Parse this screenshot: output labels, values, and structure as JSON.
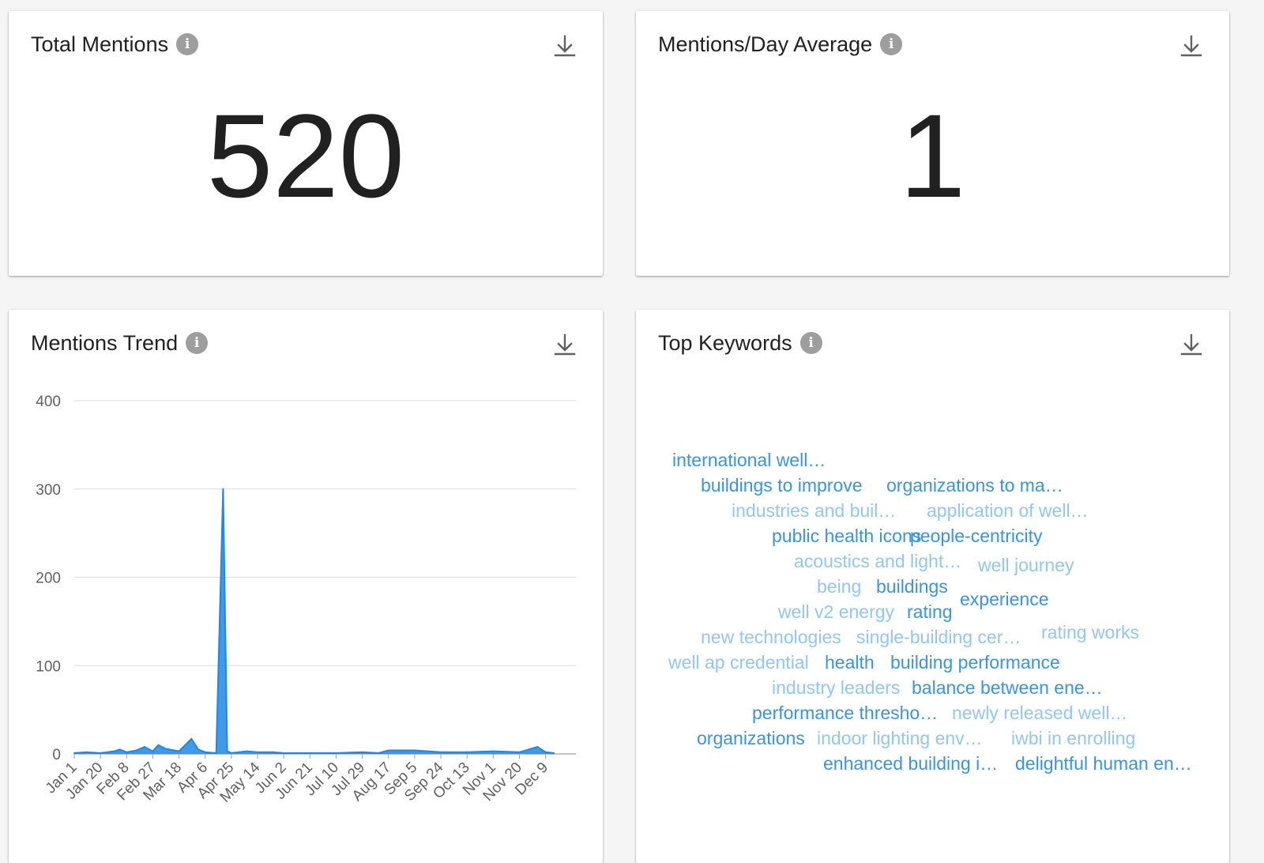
{
  "cards": {
    "total_mentions": {
      "title": "Total Mentions",
      "value": "520"
    },
    "mentions_per_day": {
      "title": "Mentions/Day Average",
      "value": "1"
    },
    "mentions_trend": {
      "title": "Mentions Trend"
    },
    "top_keywords": {
      "title": "Top Keywords"
    }
  },
  "icons": {
    "info": "info-icon",
    "download": "download-icon"
  },
  "colors": {
    "accent": "#1e88e5",
    "keyword_dark": "#3a95df",
    "keyword_light": "#92c8ef",
    "text": "#212121",
    "grey_icon": "#9e9e9e"
  },
  "chart_data": {
    "type": "area",
    "title": "Mentions Trend",
    "xlabel": "",
    "ylabel": "",
    "ylim": [
      0,
      400
    ],
    "y_ticks": [
      0,
      100,
      200,
      300,
      400
    ],
    "grid": true,
    "x_tick_labels": [
      "Jan 1",
      "Jan 20",
      "Feb 8",
      "Feb 27",
      "Mar 18",
      "Apr 6",
      "Apr 25",
      "May 14",
      "Jun 2",
      "Jun 21",
      "Jul 10",
      "Jul 29",
      "Aug 17",
      "Sep 5",
      "Sep 24",
      "Oct 13",
      "Nov 1",
      "Nov 20",
      "Dec 9"
    ],
    "series": [
      {
        "color": "#1e88e5",
        "points": [
          {
            "x": "Jan 1",
            "y": 1
          },
          {
            "x": "Jan 10",
            "y": 2
          },
          {
            "x": "Jan 20",
            "y": 1
          },
          {
            "x": "Jan 30",
            "y": 3
          },
          {
            "x": "Feb 3",
            "y": 5
          },
          {
            "x": "Feb 8",
            "y": 2
          },
          {
            "x": "Feb 15",
            "y": 4
          },
          {
            "x": "Feb 21",
            "y": 8
          },
          {
            "x": "Feb 27",
            "y": 3
          },
          {
            "x": "Mar 3",
            "y": 10
          },
          {
            "x": "Mar 8",
            "y": 6
          },
          {
            "x": "Mar 18",
            "y": 3
          },
          {
            "x": "Mar 27",
            "y": 17
          },
          {
            "x": "Apr 1",
            "y": 5
          },
          {
            "x": "Apr 6",
            "y": 2
          },
          {
            "x": "Apr 14",
            "y": 1
          },
          {
            "x": "Apr 19",
            "y": 300
          },
          {
            "x": "Apr 22",
            "y": 3
          },
          {
            "x": "Apr 25",
            "y": 1
          },
          {
            "x": "May 6",
            "y": 3
          },
          {
            "x": "May 14",
            "y": 2
          },
          {
            "x": "May 25",
            "y": 2
          },
          {
            "x": "Jun 2",
            "y": 1
          },
          {
            "x": "Jun 21",
            "y": 1
          },
          {
            "x": "Jul 10",
            "y": 1
          },
          {
            "x": "Jul 29",
            "y": 2
          },
          {
            "x": "Aug 10",
            "y": 1
          },
          {
            "x": "Aug 17",
            "y": 4
          },
          {
            "x": "Sep 5",
            "y": 4
          },
          {
            "x": "Sep 24",
            "y": 2
          },
          {
            "x": "Oct 13",
            "y": 2
          },
          {
            "x": "Nov 1",
            "y": 3
          },
          {
            "x": "Nov 20",
            "y": 2
          },
          {
            "x": "Dec 3",
            "y": 8
          },
          {
            "x": "Dec 9",
            "y": 2
          },
          {
            "x": "Dec 15",
            "y": 1
          }
        ]
      }
    ]
  },
  "keywords": [
    {
      "text": "international well…",
      "tone": "dark"
    },
    {
      "text": "buildings to improve",
      "tone": "dark"
    },
    {
      "text": "organizations to ma…",
      "tone": "dark"
    },
    {
      "text": "industries and buil…",
      "tone": "light"
    },
    {
      "text": "application of well…",
      "tone": "light"
    },
    {
      "text": "public health icons",
      "tone": "dark"
    },
    {
      "text": "people-centricity",
      "tone": "dark"
    },
    {
      "text": "acoustics and light…",
      "tone": "light"
    },
    {
      "text": "well journey",
      "tone": "light"
    },
    {
      "text": "being",
      "tone": "light"
    },
    {
      "text": "buildings",
      "tone": "dark"
    },
    {
      "text": "experience",
      "tone": "dark"
    },
    {
      "text": "well v2 energy",
      "tone": "light"
    },
    {
      "text": "rating",
      "tone": "dark"
    },
    {
      "text": "new technologies",
      "tone": "light"
    },
    {
      "text": "single-building cer…",
      "tone": "light"
    },
    {
      "text": "rating works",
      "tone": "light"
    },
    {
      "text": "well ap credential",
      "tone": "light"
    },
    {
      "text": "health",
      "tone": "dark"
    },
    {
      "text": "building performance",
      "tone": "dark"
    },
    {
      "text": "industry leaders",
      "tone": "light"
    },
    {
      "text": "balance between ene…",
      "tone": "dark"
    },
    {
      "text": "performance thresho…",
      "tone": "dark"
    },
    {
      "text": "newly released well…",
      "tone": "light"
    },
    {
      "text": "organizations",
      "tone": "dark"
    },
    {
      "text": "indoor lighting env…",
      "tone": "light"
    },
    {
      "text": "iwbi in enrolling",
      "tone": "light"
    },
    {
      "text": "enhanced building i…",
      "tone": "dark"
    },
    {
      "text": "delightful human en…",
      "tone": "dark"
    }
  ]
}
